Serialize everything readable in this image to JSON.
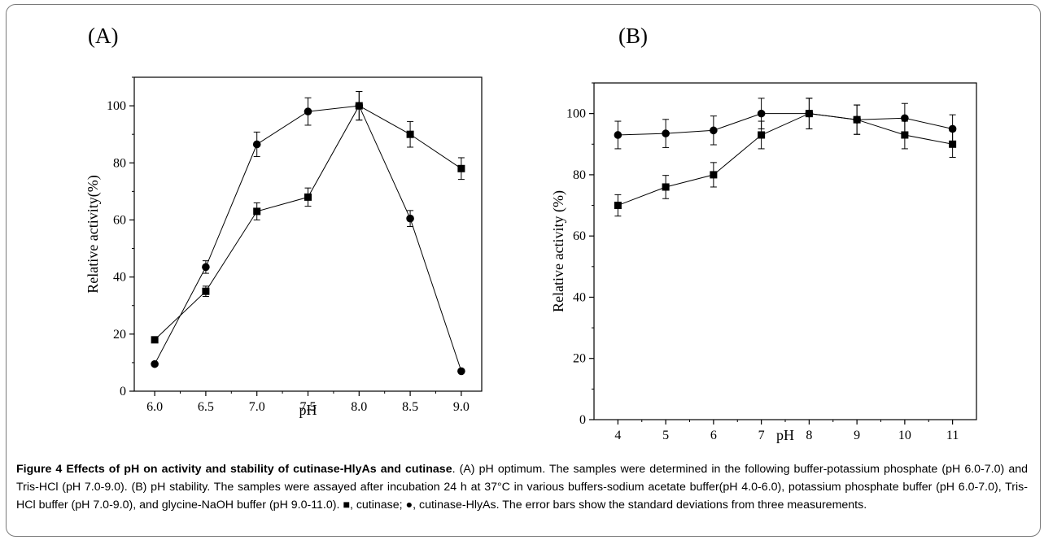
{
  "caption": {
    "title": "Figure 4 Effects of pH on activity and stability of cutinase-HlyAs and cutinase",
    "text": ". (A) pH optimum. The samples were determined in the following buffer-potassium phosphate (pH 6.0-7.0) and Tris-HCl (pH 7.0-9.0). (B) pH stability. The samples were assayed after incubation 24 h at 37°C in various buffers-sodium acetate buffer(pH 4.0-6.0), potassium phosphate buffer (pH 6.0-7.0), Tris-HCl buffer (pH 7.0-9.0), and glycine-NaOH buffer (pH 9.0-11.0). ■, cutinase; ●, cutinase-HlyAs. The error bars show the standard deviations from three measurements."
  },
  "chart_data": [
    {
      "panel": "(A)",
      "type": "line",
      "xlabel": "pH",
      "ylabel": "Relative activity(%)",
      "xlim": [
        5.8,
        9.2
      ],
      "ylim": [
        0,
        110
      ],
      "xticks": [
        6.0,
        6.5,
        7.0,
        7.5,
        8.0,
        8.5,
        9.0
      ],
      "xtick_labels": [
        "6.0",
        "6.5",
        "7.0",
        "7.5",
        "8.0",
        "8.5",
        "9.0"
      ],
      "yticks": [
        0,
        20,
        40,
        60,
        80,
        100
      ],
      "ytick_labels": [
        "0",
        "20",
        "40",
        "60",
        "80",
        "100"
      ],
      "series": [
        {
          "marker": "square",
          "x": [
            6.0,
            6.5,
            7.0,
            7.5,
            8.0,
            8.5,
            9.0
          ],
          "y": [
            18,
            35,
            63,
            68,
            100,
            90,
            78
          ],
          "err": [
            0,
            1.8,
            3,
            3.2,
            5,
            4.5,
            3.8
          ]
        },
        {
          "marker": "circle",
          "x": [
            6.0,
            6.5,
            7.0,
            7.5,
            8.0,
            8.5,
            9.0
          ],
          "y": [
            9.5,
            43.5,
            86.5,
            98,
            100,
            60.5,
            7
          ],
          "err": [
            0,
            2.2,
            4.3,
            4.8,
            5,
            2.8,
            0
          ]
        }
      ]
    },
    {
      "panel": "(B)",
      "type": "line",
      "xlabel": "pH",
      "ylabel": "Relative activity (%)",
      "xlim": [
        3.5,
        11.5
      ],
      "ylim": [
        0,
        110
      ],
      "xticks": [
        4,
        5,
        6,
        7,
        8,
        9,
        10,
        11
      ],
      "xtick_labels": [
        "4",
        "5",
        "6",
        "7",
        "8",
        "9",
        "10",
        "11"
      ],
      "yticks": [
        0,
        20,
        40,
        60,
        80,
        100
      ],
      "ytick_labels": [
        "0",
        "20",
        "40",
        "60",
        "80",
        "100"
      ],
      "series": [
        {
          "marker": "square",
          "x": [
            4,
            5,
            6,
            7,
            8,
            9,
            10,
            11
          ],
          "y": [
            70,
            76,
            80,
            93,
            100,
            98,
            93,
            90
          ],
          "err": [
            3.5,
            3.8,
            4,
            4.5,
            5,
            4.8,
            4.5,
            4.3
          ]
        },
        {
          "marker": "circle",
          "x": [
            4,
            5,
            6,
            7,
            8,
            9,
            10,
            11
          ],
          "y": [
            93,
            93.5,
            94.5,
            100,
            100,
            98,
            98.5,
            95
          ],
          "err": [
            4.5,
            4.6,
            4.7,
            5,
            5,
            4.8,
            4.8,
            4.6
          ]
        }
      ]
    }
  ]
}
